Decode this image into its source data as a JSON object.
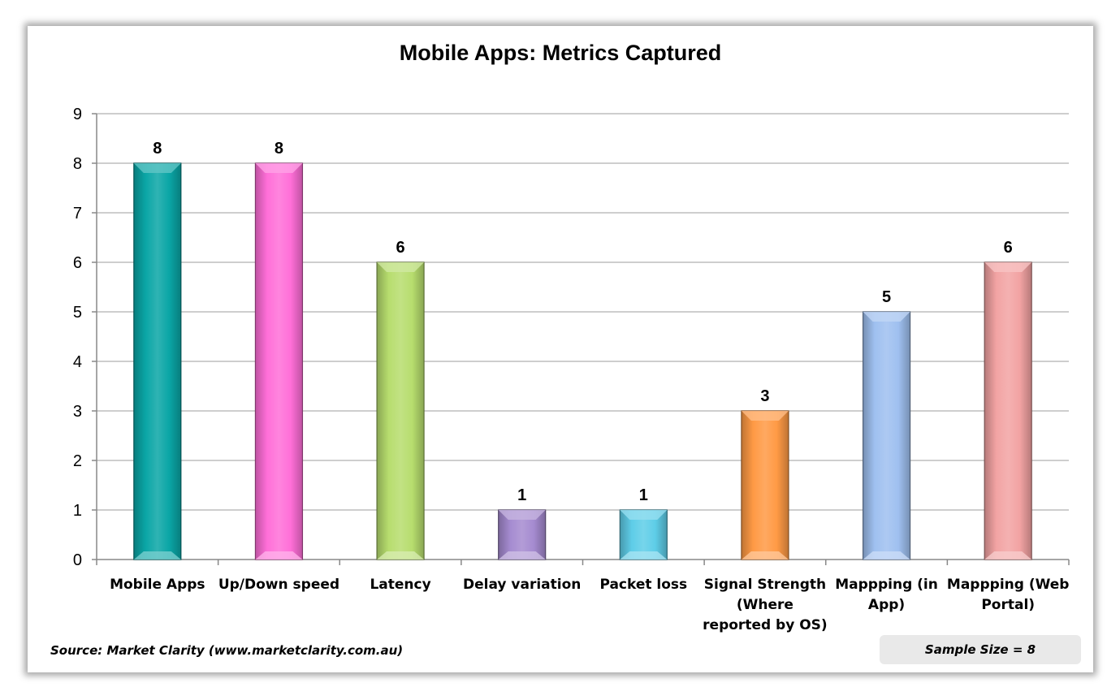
{
  "chart_data": {
    "type": "bar",
    "title": "Mobile Apps: Metrics Captured",
    "categories": [
      [
        "Mobile Apps"
      ],
      [
        "Up/Down speed"
      ],
      [
        "Latency"
      ],
      [
        "Delay variation"
      ],
      [
        "Packet loss"
      ],
      [
        "Signal Strength",
        "(Where",
        "reported by OS)"
      ],
      [
        "Mappping (in",
        "App)"
      ],
      [
        "Mappping (Web",
        "Portal)"
      ]
    ],
    "values": [
      8,
      8,
      6,
      1,
      1,
      3,
      5,
      6
    ],
    "colors": [
      "#0aa6a6",
      "#ff6fd8",
      "#b7dd6e",
      "#a58bd0",
      "#5ecde8",
      "#ff9a45",
      "#9fc0f0",
      "#f2a3a3"
    ],
    "ylim": [
      0,
      9
    ],
    "yticks": [
      0,
      1,
      2,
      3,
      4,
      5,
      6,
      7,
      8,
      9
    ],
    "xlabel": "",
    "ylabel": "",
    "grid": true,
    "data_labels": true
  },
  "footer": {
    "source": "Source: Market Clarity (www.marketclarity.com.au)",
    "sample_size": "Sample Size = 8"
  }
}
